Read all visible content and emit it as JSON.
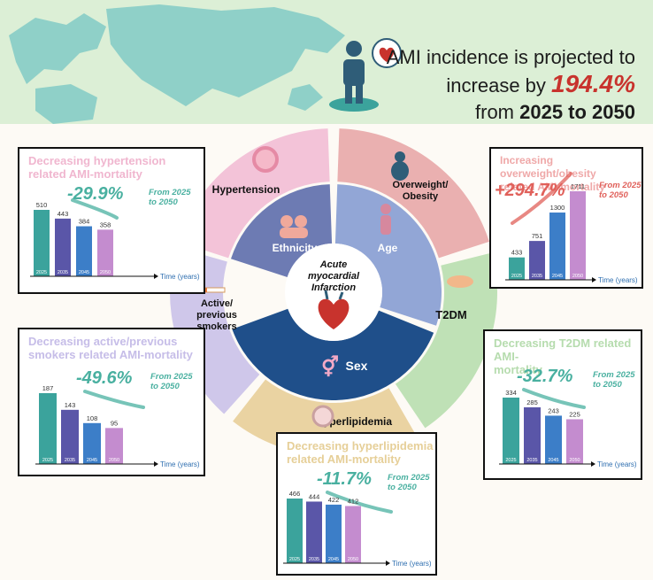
{
  "headline": {
    "line1": "AMI incidence is projected to",
    "line2_prefix": "increase by ",
    "percent": "194.4%",
    "line3_prefix": "from ",
    "years": "2025 to 2050"
  },
  "wheel": {
    "center": [
      "Acute",
      "myocardial",
      "Infarction"
    ],
    "inner": [
      "Ethnicity",
      "Age",
      "Sex"
    ],
    "outer": [
      "Hypertension",
      "Overweight/",
      "Obesity",
      "T2DM",
      "Hyperlipidemia",
      "Active/",
      "previous",
      "smokers"
    ]
  },
  "colors": {
    "hypertension": "#f3c3d8",
    "obesity": "#eab0b0",
    "t2dm": "#bfe1b6",
    "hyperlipidemia": "#ead3a2",
    "smokers": "#cfc7ea",
    "bar1": "#3ba39c",
    "bar2": "#5a56a8",
    "bar3": "#3c7ec8",
    "bar4": "#c48ccf"
  },
  "panels": [
    {
      "id": "hypertension",
      "title": [
        "Decreasing hypertension",
        "related AMI-mortality"
      ],
      "change": "-29.9%",
      "note": [
        "From 2025",
        "to 2050"
      ],
      "axis_label": "Time (years)",
      "title_color": "#f0b6cf",
      "change_color": "#49b0a0"
    },
    {
      "id": "obesity",
      "title": [
        "Increasing overweight/obesity",
        "related AMI-mortality"
      ],
      "change": "+294.7%",
      "note": [
        "From 2025",
        "to 2050"
      ],
      "axis_label": "Time (years)",
      "title_color": "#efa8a8",
      "change_color": "#e0605a"
    },
    {
      "id": "smokers",
      "title": [
        "Decreasing active/previous",
        "smokers related AMI-mortality"
      ],
      "change": "-49.6%",
      "note": [
        "From 2025",
        "to 2050"
      ],
      "axis_label": "Time (years)",
      "title_color": "#c6bde8",
      "change_color": "#49b0a0"
    },
    {
      "id": "t2dm",
      "title": [
        "Decreasing T2DM related AMI-",
        "mortality"
      ],
      "change": "-32.7%",
      "note": [
        "From 2025",
        "to 2050"
      ],
      "axis_label": "Time (years)",
      "title_color": "#b6dcae",
      "change_color": "#49b0a0"
    },
    {
      "id": "hyperlipidemia",
      "title": [
        "Decreasing hyperlipidemia",
        "related AMI-mortality"
      ],
      "change": "-11.7%",
      "note": [
        "From 2025",
        "to 2050"
      ],
      "axis_label": "Time (years)",
      "title_color": "#e6cf98",
      "change_color": "#49b0a0"
    }
  ],
  "chart_data": [
    {
      "type": "bar",
      "id": "hypertension",
      "categories": [
        "2025",
        "2035",
        "2045",
        "2050"
      ],
      "values": [
        510,
        443,
        384,
        358
      ],
      "xlabel": "Time (years)"
    },
    {
      "type": "bar",
      "id": "obesity",
      "categories": [
        "2025",
        "2035",
        "2045",
        "2050"
      ],
      "values": [
        433,
        751,
        1300,
        1711
      ],
      "xlabel": "Time (years)"
    },
    {
      "type": "bar",
      "id": "smokers",
      "categories": [
        "2025",
        "2035",
        "2045",
        "2050"
      ],
      "values": [
        187,
        143,
        108,
        95
      ],
      "xlabel": "Time (years)"
    },
    {
      "type": "bar",
      "id": "t2dm",
      "categories": [
        "2025",
        "2035",
        "2045",
        "2050"
      ],
      "values": [
        334,
        285,
        243,
        225
      ],
      "xlabel": "Time (years)"
    },
    {
      "type": "bar",
      "id": "hyperlipidemia",
      "categories": [
        "2025",
        "2035",
        "2045",
        "2050"
      ],
      "values": [
        466,
        444,
        422,
        412
      ],
      "xlabel": "Time (years)"
    }
  ]
}
